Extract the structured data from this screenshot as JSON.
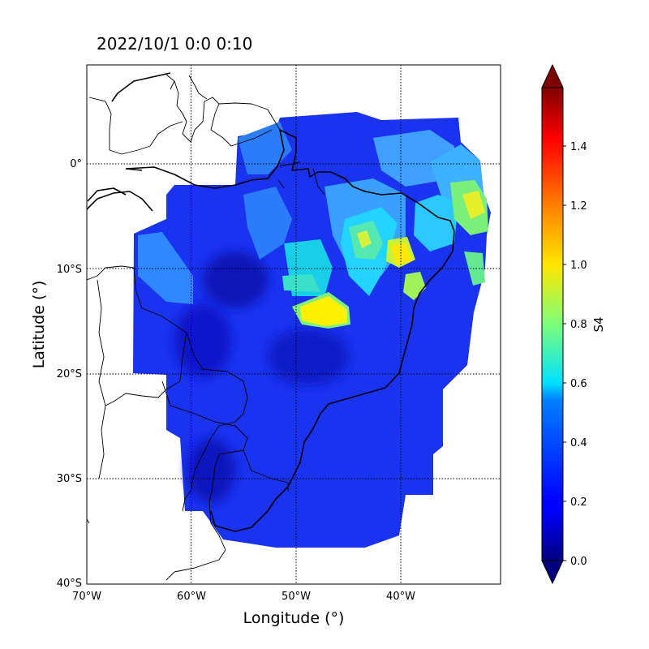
{
  "title": "2022/10/1   0:0 0:10",
  "xlabel": "Longitude (°)",
  "ylabel": "Latitude (°)",
  "colorbar": {
    "label": "S4",
    "range": [
      0,
      1.6
    ],
    "ticks": [
      "0.0",
      "0.2",
      "0.4",
      "0.6",
      "0.8",
      "1.0",
      "1.2",
      "1.4"
    ],
    "colormap": "jet",
    "extend": "both"
  },
  "x_ticks": [
    "70°W",
    "60°W",
    "50°W",
    "40°W"
  ],
  "y_ticks": [
    "0°",
    "10°S",
    "20°S",
    "30°S",
    "40°S"
  ],
  "x_range": [
    -70,
    -30.6
  ],
  "y_range": [
    -40,
    9.5
  ],
  "chart_data": {
    "type": "heatmap",
    "variable": "S4",
    "colorbar_range": [
      0,
      1.6
    ],
    "background_value": 0.2,
    "hotspots": [
      {
        "lon": -46.5,
        "lat": -14.0,
        "value": 1.0
      },
      {
        "lon": -40.2,
        "lat": -8.8,
        "value": 0.95
      },
      {
        "lon": -43.5,
        "lat": -7.5,
        "value": 0.75
      },
      {
        "lon": -32.8,
        "lat": -4.0,
        "value": 0.75
      },
      {
        "lon": -32.5,
        "lat": -10.0,
        "value": 0.7
      },
      {
        "lon": -37.5,
        "lat": -11.5,
        "value": 0.75
      },
      {
        "lon": -45.5,
        "lat": -11.0,
        "value": 0.55
      },
      {
        "lon": -49.0,
        "lat": -11.0,
        "value": 0.6
      },
      {
        "lon": -38.5,
        "lat": -1.5,
        "value": 0.4
      },
      {
        "lon": -36.5,
        "lat": -5.5,
        "value": 0.5
      },
      {
        "lon": -53.0,
        "lat": -7.0,
        "value": 0.4
      },
      {
        "lon": -64.0,
        "lat": -11.0,
        "value": 0.4
      }
    ]
  }
}
